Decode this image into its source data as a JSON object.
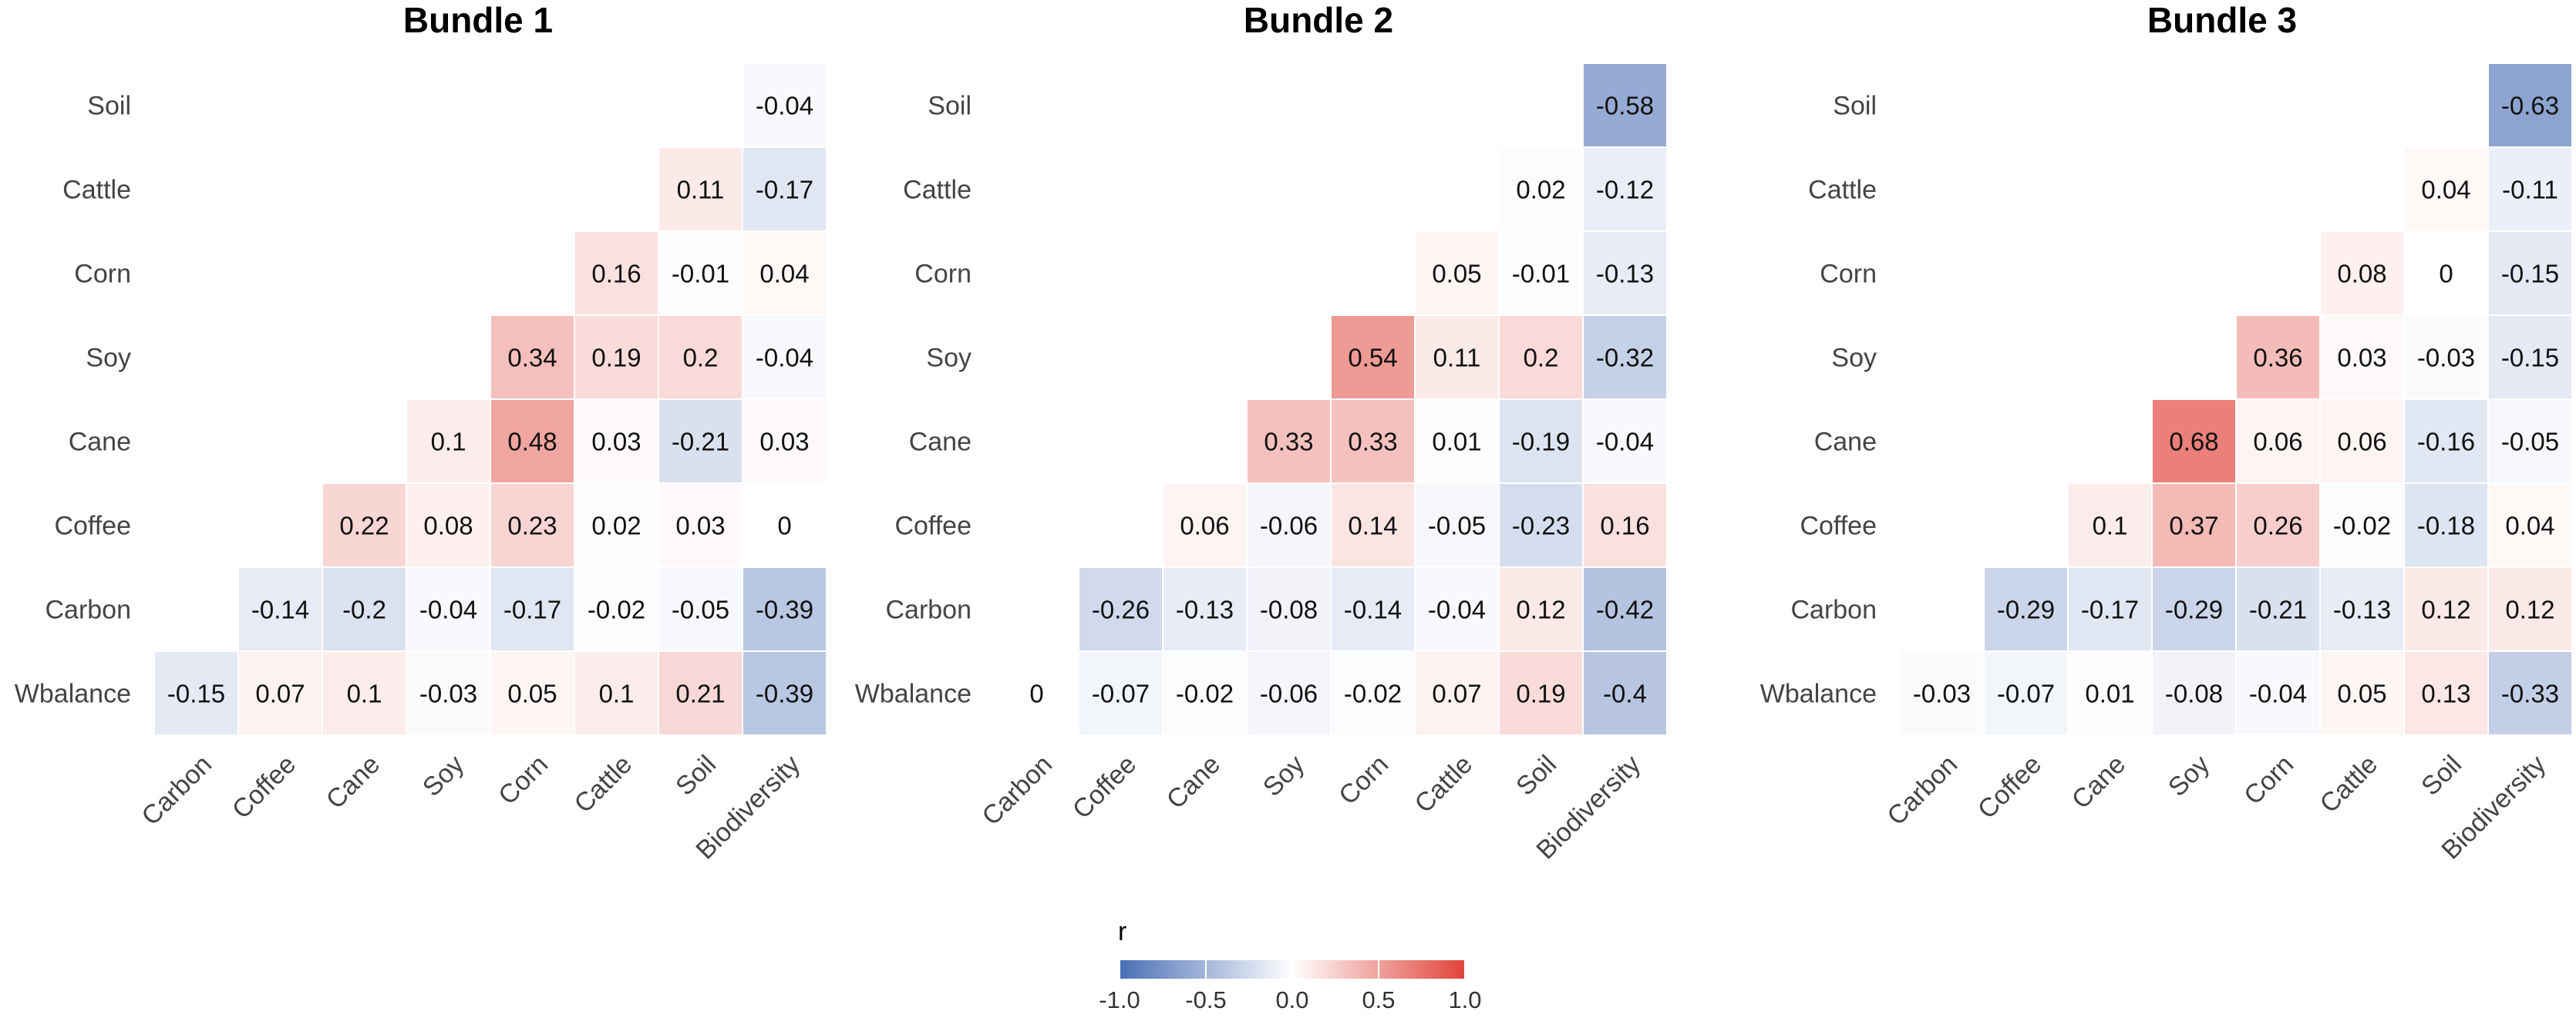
{
  "chart_data": [
    {
      "type": "heatmap",
      "title": "Bundle 1",
      "rows": [
        "Soil",
        "Cattle",
        "Corn",
        "Soy",
        "Cane",
        "Coffee",
        "Carbon",
        "Wbalance"
      ],
      "columns": [
        "Carbon",
        "Coffee",
        "Cane",
        "Soy",
        "Corn",
        "Cattle",
        "Soil",
        "Biodiversity"
      ],
      "values": [
        [
          null,
          null,
          null,
          null,
          null,
          null,
          null,
          -0.04
        ],
        [
          null,
          null,
          null,
          null,
          null,
          null,
          0.11,
          -0.17
        ],
        [
          null,
          null,
          null,
          null,
          null,
          0.16,
          -0.01,
          0.04
        ],
        [
          null,
          null,
          null,
          null,
          0.34,
          0.19,
          0.2,
          -0.04
        ],
        [
          null,
          null,
          null,
          0.1,
          0.48,
          0.03,
          -0.21,
          0.03
        ],
        [
          null,
          null,
          0.22,
          0.08,
          0.23,
          0.02,
          0.03,
          0
        ],
        [
          null,
          -0.14,
          -0.2,
          -0.04,
          -0.17,
          -0.02,
          -0.05,
          -0.39
        ],
        [
          -0.15,
          0.07,
          0.1,
          -0.03,
          0.05,
          0.1,
          0.21,
          -0.39
        ]
      ]
    },
    {
      "type": "heatmap",
      "title": "Bundle 2",
      "rows": [
        "Soil",
        "Cattle",
        "Corn",
        "Soy",
        "Cane",
        "Coffee",
        "Carbon",
        "Wbalance"
      ],
      "columns": [
        "Carbon",
        "Coffee",
        "Cane",
        "Soy",
        "Corn",
        "Cattle",
        "Soil",
        "Biodiversity"
      ],
      "values": [
        [
          null,
          null,
          null,
          null,
          null,
          null,
          null,
          -0.58
        ],
        [
          null,
          null,
          null,
          null,
          null,
          null,
          0.02,
          -0.12
        ],
        [
          null,
          null,
          null,
          null,
          null,
          0.05,
          -0.01,
          -0.13
        ],
        [
          null,
          null,
          null,
          null,
          0.54,
          0.11,
          0.2,
          -0.32
        ],
        [
          null,
          null,
          null,
          0.33,
          0.33,
          0.01,
          -0.19,
          -0.04
        ],
        [
          null,
          null,
          0.06,
          -0.06,
          0.14,
          -0.05,
          -0.23,
          0.16
        ],
        [
          null,
          -0.26,
          -0.13,
          -0.08,
          -0.14,
          -0.04,
          0.12,
          -0.42
        ],
        [
          0,
          -0.07,
          -0.02,
          -0.06,
          -0.02,
          0.07,
          0.19,
          -0.4
        ]
      ]
    },
    {
      "type": "heatmap",
      "title": "Bundle 3",
      "rows": [
        "Soil",
        "Cattle",
        "Corn",
        "Soy",
        "Cane",
        "Coffee",
        "Carbon",
        "Wbalance"
      ],
      "columns": [
        "Carbon",
        "Coffee",
        "Cane",
        "Soy",
        "Corn",
        "Cattle",
        "Soil",
        "Biodiversity"
      ],
      "values": [
        [
          null,
          null,
          null,
          null,
          null,
          null,
          null,
          -0.63
        ],
        [
          null,
          null,
          null,
          null,
          null,
          null,
          0.04,
          -0.11
        ],
        [
          null,
          null,
          null,
          null,
          null,
          0.08,
          0,
          -0.15
        ],
        [
          null,
          null,
          null,
          null,
          0.36,
          0.03,
          -0.03,
          -0.15
        ],
        [
          null,
          null,
          null,
          0.68,
          0.06,
          0.06,
          -0.16,
          -0.05
        ],
        [
          null,
          null,
          0.1,
          0.37,
          0.26,
          -0.02,
          -0.18,
          0.04
        ],
        [
          null,
          -0.29,
          -0.17,
          -0.29,
          -0.21,
          -0.13,
          0.12,
          0.12
        ],
        [
          -0.03,
          -0.07,
          0.01,
          -0.08,
          -0.04,
          0.05,
          0.13,
          -0.33
        ]
      ]
    }
  ],
  "legend": {
    "title": "r",
    "ticks": [
      "-1.0",
      "-0.5",
      "0.0",
      "0.5",
      "1.0"
    ],
    "range": [
      -1,
      1
    ],
    "low_color": "#4a6fb5",
    "mid_color": "#ffffff",
    "high_color": "#e0443a"
  }
}
